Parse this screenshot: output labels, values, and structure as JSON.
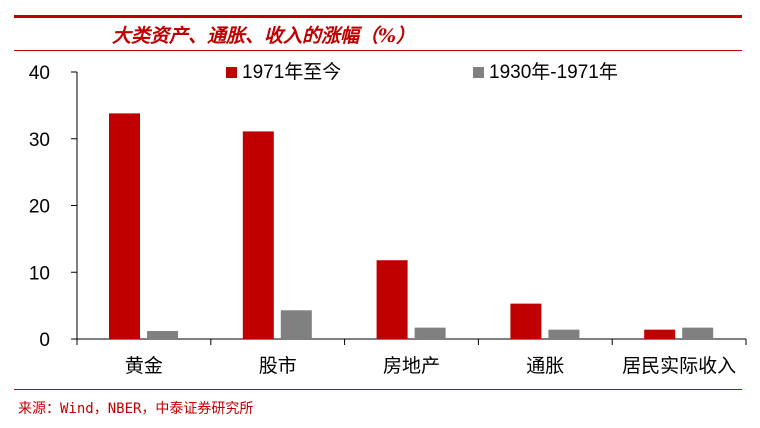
{
  "header": {
    "title": "大类资产、通胀、收入的涨幅（%）"
  },
  "footer": {
    "source": "来源：Wind，NBER，中泰证券研究所"
  },
  "colors": {
    "accent": "#c00000",
    "series_1": "#c00000",
    "series_2": "#808080"
  },
  "chart_data": {
    "type": "bar",
    "title": "大类资产、通胀、收入的涨幅（%）",
    "xlabel": "",
    "ylabel": "",
    "categories": [
      "黄金",
      "股市",
      "房地产",
      "通胀",
      "居民实际收入"
    ],
    "series": [
      {
        "name": "1971年至今",
        "values": [
          33.8,
          31.1,
          11.8,
          5.3,
          1.4
        ]
      },
      {
        "name": "1930年-1971年",
        "values": [
          1.2,
          4.3,
          1.7,
          1.4,
          1.7
        ]
      }
    ],
    "ylim": [
      0,
      40
    ],
    "yticks": [
      "0",
      "10",
      "20",
      "30",
      "40"
    ],
    "grid": false,
    "legend": "top"
  }
}
